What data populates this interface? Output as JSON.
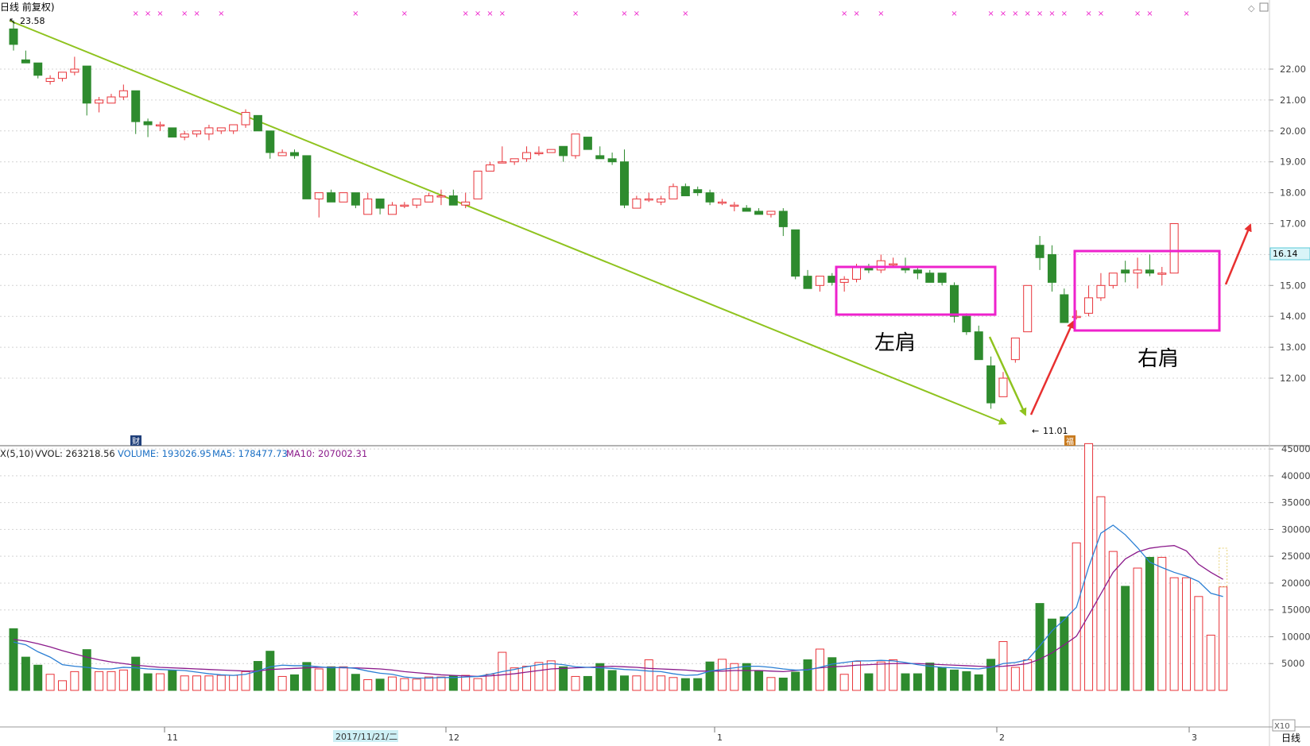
{
  "header": {
    "title": "日线 前复权)",
    "high_label": "23.58",
    "low_label": "11.01",
    "cai_icon": "财",
    "note_icon": "福"
  },
  "right_panel": {
    "current_price": "16.14",
    "zoom_label": "X10",
    "period": "日线"
  },
  "annotations": {
    "left_shoulder": "左肩",
    "right_shoulder": "右肩"
  },
  "volume_header": {
    "prefix": "X(5,10)",
    "vol": "VVOL: 263218.56",
    "volume": "VOLUME: 193026.95",
    "ma5": "MA5: 178477.73",
    "ma10": "MA10: 207002.31"
  },
  "x_axis": {
    "labels": [
      "11",
      "12",
      "1",
      "2",
      "3"
    ],
    "cursor_date": "2017/11/21/二"
  },
  "colors": {
    "up": "#e8343a",
    "down": "#2e8b2e",
    "ma5": "#2b7fd4",
    "ma10": "#8b1a8b",
    "trend": "#8fc31f",
    "box": "#ee22cc",
    "arrow": "#e83030",
    "axis_text": "#444444",
    "blue_text": "#1a6fc4",
    "purple_text": "#8b1a8b"
  },
  "chart_data": [
    {
      "type": "candlestick",
      "title": "",
      "ylim": [
        11.0,
        23.6
      ],
      "y_ticks": [
        12.0,
        13.0,
        14.0,
        15.0,
        16.0,
        17.0,
        18.0,
        19.0,
        20.0,
        21.0,
        22.0
      ],
      "markers": {
        "high": 23.58,
        "low": 11.01,
        "current": 16.14
      },
      "ohlc": [
        [
          23.3,
          23.58,
          22.6,
          22.8
        ],
        [
          22.3,
          22.6,
          22.2,
          22.2
        ],
        [
          22.2,
          22.2,
          21.7,
          21.8
        ],
        [
          21.6,
          21.8,
          21.5,
          21.7
        ],
        [
          21.7,
          21.9,
          21.6,
          21.9
        ],
        [
          21.9,
          22.4,
          21.8,
          22.0
        ],
        [
          22.1,
          22.1,
          20.5,
          20.9
        ],
        [
          20.9,
          21.1,
          20.6,
          21.0
        ],
        [
          20.9,
          21.2,
          20.9,
          21.1
        ],
        [
          21.1,
          21.5,
          21.0,
          21.3
        ],
        [
          21.3,
          21.3,
          19.9,
          20.3
        ],
        [
          20.3,
          20.4,
          19.8,
          20.2
        ],
        [
          20.2,
          20.3,
          20.0,
          20.2
        ],
        [
          20.1,
          20.1,
          19.8,
          19.8
        ],
        [
          19.8,
          20.0,
          19.7,
          19.9
        ],
        [
          19.9,
          20.0,
          19.8,
          20.0
        ],
        [
          19.9,
          20.2,
          19.7,
          20.1
        ],
        [
          20.0,
          20.1,
          19.9,
          20.1
        ],
        [
          20.0,
          20.2,
          19.9,
          20.2
        ],
        [
          20.2,
          20.7,
          20.1,
          20.6
        ],
        [
          20.5,
          20.5,
          20.0,
          20.0
        ],
        [
          20.0,
          20.0,
          19.1,
          19.3
        ],
        [
          19.2,
          19.4,
          19.2,
          19.3
        ],
        [
          19.3,
          19.4,
          19.1,
          19.2
        ],
        [
          19.2,
          19.2,
          17.8,
          17.8
        ],
        [
          17.8,
          18.0,
          17.2,
          18.0
        ],
        [
          18.0,
          18.1,
          17.7,
          17.7
        ],
        [
          17.7,
          18.0,
          17.7,
          18.0
        ],
        [
          18.0,
          18.0,
          17.5,
          17.6
        ],
        [
          17.3,
          18.0,
          17.3,
          17.8
        ],
        [
          17.8,
          17.8,
          17.3,
          17.5
        ],
        [
          17.3,
          17.7,
          17.3,
          17.6
        ],
        [
          17.6,
          17.7,
          17.5,
          17.6
        ],
        [
          17.6,
          17.8,
          17.5,
          17.8
        ],
        [
          17.7,
          18.0,
          17.7,
          17.9
        ],
        [
          17.9,
          18.1,
          17.6,
          17.9
        ],
        [
          17.9,
          18.1,
          17.6,
          17.6
        ],
        [
          17.6,
          18.0,
          17.5,
          17.7
        ],
        [
          17.8,
          18.7,
          17.8,
          18.7
        ],
        [
          18.7,
          19.0,
          18.7,
          18.9
        ],
        [
          19.0,
          19.5,
          19.0,
          19.0
        ],
        [
          19.0,
          19.1,
          18.9,
          19.1
        ],
        [
          19.1,
          19.5,
          19.0,
          19.3
        ],
        [
          19.3,
          19.5,
          19.2,
          19.3
        ],
        [
          19.3,
          19.4,
          19.3,
          19.4
        ],
        [
          19.5,
          19.5,
          19.0,
          19.2
        ],
        [
          19.2,
          19.9,
          19.1,
          19.9
        ],
        [
          19.8,
          19.8,
          19.4,
          19.4
        ],
        [
          19.2,
          19.5,
          19.1,
          19.1
        ],
        [
          19.1,
          19.3,
          18.9,
          19.0
        ],
        [
          19.0,
          19.4,
          17.5,
          17.6
        ],
        [
          17.5,
          17.9,
          17.5,
          17.8
        ],
        [
          17.8,
          18.0,
          17.7,
          17.8
        ],
        [
          17.7,
          17.9,
          17.6,
          17.8
        ],
        [
          17.8,
          18.3,
          17.8,
          18.2
        ],
        [
          18.2,
          18.3,
          17.9,
          17.9
        ],
        [
          18.1,
          18.2,
          17.9,
          18.0
        ],
        [
          18.0,
          18.1,
          17.6,
          17.7
        ],
        [
          17.7,
          17.8,
          17.6,
          17.7
        ],
        [
          17.6,
          17.7,
          17.4,
          17.6
        ],
        [
          17.5,
          17.6,
          17.4,
          17.4
        ],
        [
          17.4,
          17.5,
          17.3,
          17.3
        ],
        [
          17.3,
          17.4,
          17.2,
          17.4
        ],
        [
          17.4,
          17.5,
          16.6,
          16.9
        ],
        [
          16.8,
          16.8,
          15.2,
          15.3
        ],
        [
          15.3,
          15.5,
          14.9,
          14.9
        ],
        [
          15.0,
          15.2,
          14.8,
          15.3
        ],
        [
          15.3,
          15.4,
          15.0,
          15.1
        ],
        [
          15.1,
          15.3,
          14.8,
          15.2
        ],
        [
          15.2,
          15.7,
          15.1,
          15.6
        ],
        [
          15.6,
          15.7,
          15.4,
          15.5
        ],
        [
          15.5,
          16.0,
          15.4,
          15.8
        ],
        [
          15.7,
          15.9,
          15.6,
          15.7
        ],
        [
          15.6,
          15.9,
          15.4,
          15.5
        ],
        [
          15.5,
          15.6,
          15.2,
          15.4
        ],
        [
          15.4,
          15.5,
          15.1,
          15.1
        ],
        [
          15.4,
          15.4,
          15.0,
          15.1
        ],
        [
          15.0,
          15.1,
          13.8,
          14.0
        ],
        [
          14.0,
          14.1,
          13.4,
          13.5
        ],
        [
          13.5,
          13.7,
          12.6,
          12.6
        ],
        [
          12.4,
          12.7,
          11.01,
          11.2
        ],
        [
          11.4,
          12.2,
          11.4,
          12.0
        ],
        [
          12.6,
          13.3,
          12.5,
          13.3
        ],
        [
          13.5,
          15.0,
          13.5,
          15.0
        ],
        [
          16.3,
          16.6,
          15.5,
          15.9
        ],
        [
          16.0,
          16.3,
          14.8,
          15.1
        ],
        [
          14.7,
          14.9,
          13.8,
          13.8
        ],
        [
          14.0,
          14.2,
          13.9,
          14.0
        ],
        [
          14.1,
          15.0,
          14.0,
          14.6
        ],
        [
          14.6,
          15.4,
          14.5,
          15.0
        ],
        [
          15.0,
          15.4,
          14.9,
          15.4
        ],
        [
          15.5,
          15.8,
          15.1,
          15.4
        ],
        [
          15.4,
          15.9,
          14.9,
          15.5
        ],
        [
          15.5,
          16.0,
          15.3,
          15.4
        ],
        [
          15.4,
          15.6,
          15.0,
          15.4
        ],
        [
          15.4,
          17.0,
          15.4,
          17.0
        ]
      ]
    },
    {
      "type": "bar",
      "title": "",
      "ylim": [
        0,
        47000
      ],
      "y_ticks": [
        5000,
        10000,
        15000,
        20000,
        25000,
        30000,
        35000,
        40000,
        45000
      ],
      "values": [
        11500,
        6200,
        4700,
        3000,
        1800,
        3500,
        7600,
        3500,
        3500,
        3800,
        6200,
        3100,
        3100,
        3700,
        2700,
        2700,
        2700,
        2800,
        2800,
        3500,
        5400,
        7300,
        2600,
        2900,
        5200,
        4000,
        4400,
        4400,
        3000,
        2000,
        2100,
        2500,
        2200,
        2100,
        2500,
        2500,
        2700,
        2800,
        2200,
        3000,
        7100,
        4200,
        4500,
        5200,
        5500,
        4400,
        2600,
        2600,
        5000,
        3700,
        2700,
        2700,
        5700,
        2700,
        2400,
        2200,
        2200,
        5300,
        5800,
        5000,
        5000,
        3700,
        2400,
        2300,
        3400,
        5700,
        7700,
        6100,
        3000,
        5400,
        3100,
        5300,
        5700,
        3100,
        3100,
        5100,
        4300,
        3800,
        3500,
        2900,
        5800,
        9100,
        4300,
        5700,
        16200,
        13300,
        13700,
        27500,
        46000,
        36100,
        25900,
        19400,
        22800,
        24800,
        24800,
        21000,
        21000,
        17500,
        10300,
        19300
      ],
      "ma5": [
        9000,
        8500,
        7200,
        6200,
        4800,
        4500,
        4300,
        4000,
        4000,
        4300,
        4200,
        4000,
        3900,
        3800,
        3700,
        3400,
        3100,
        2900,
        2800,
        3000,
        3600,
        4400,
        4700,
        4600,
        4600,
        4400,
        4200,
        4300,
        4100,
        3600,
        3200,
        3000,
        2500,
        2300,
        2300,
        2400,
        2400,
        2500,
        2600,
        3000,
        3500,
        3900,
        4400,
        4800,
        5000,
        4800,
        4400,
        4300,
        4200,
        4100,
        3900,
        3800,
        3600,
        3500,
        3100,
        2800,
        2900,
        3600,
        3900,
        4200,
        4500,
        4500,
        4300,
        4000,
        3800,
        3800,
        4300,
        4900,
        5200,
        5500,
        5500,
        5600,
        5500,
        5200,
        4800,
        4500,
        4300,
        4200,
        4100,
        4000,
        4300,
        5000,
        5200,
        5700,
        8300,
        11100,
        13200,
        15500,
        23000,
        29300,
        30800,
        29000,
        26600,
        23900,
        22900,
        22000,
        21300,
        20300,
        18100,
        17500
      ],
      "ma10": [
        9500,
        9200,
        8700,
        8100,
        7400,
        6800,
        6200,
        5700,
        5300,
        5000,
        4700,
        4500,
        4300,
        4200,
        4100,
        4000,
        3900,
        3800,
        3700,
        3600,
        3600,
        3900,
        4000,
        4100,
        4200,
        4300,
        4300,
        4200,
        4200,
        4100,
        4000,
        3800,
        3500,
        3300,
        3100,
        2900,
        2800,
        2700,
        2600,
        2700,
        2900,
        3100,
        3400,
        3700,
        4000,
        4100,
        4200,
        4300,
        4400,
        4500,
        4400,
        4300,
        4100,
        4000,
        3900,
        3800,
        3600,
        3600,
        3600,
        3700,
        3700,
        3700,
        3600,
        3500,
        3700,
        3900,
        4200,
        4400,
        4500,
        4700,
        4800,
        4900,
        5000,
        5000,
        5000,
        4900,
        4800,
        4700,
        4600,
        4500,
        4400,
        4500,
        4700,
        5000,
        5800,
        7000,
        8500,
        10100,
        14000,
        18000,
        22000,
        24500,
        25800,
        26500,
        26800,
        27000,
        26000,
        23500,
        22000,
        20700
      ]
    }
  ]
}
